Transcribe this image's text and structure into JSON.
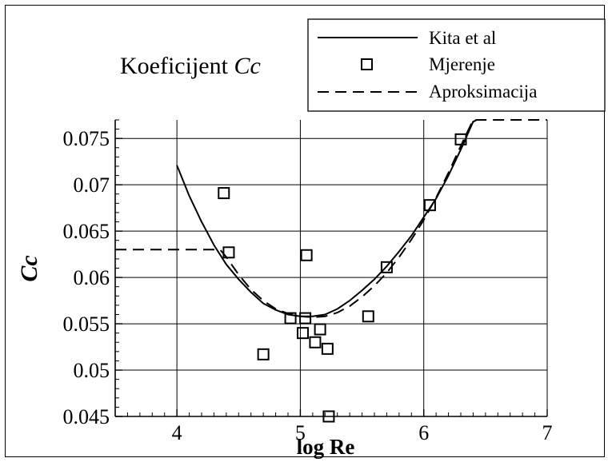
{
  "chart_data": {
    "type": "line",
    "title_text": "Koeficijent ",
    "title_italic": "Cc",
    "xlabel": "log Re",
    "ylabel": "Cc",
    "xlim": [
      3.5,
      7
    ],
    "ylim": [
      0.045,
      0.077
    ],
    "x_ticks": [
      4,
      5,
      6,
      7
    ],
    "x_tick_labels": [
      "4",
      "5",
      "6",
      "7"
    ],
    "y_ticks": [
      0.045,
      0.05,
      0.055,
      0.06,
      0.065,
      0.07,
      0.075
    ],
    "y_tick_labels": [
      "0.045",
      "0.05",
      "0.055",
      "0.06",
      "0.065",
      "0.07",
      "0.075"
    ],
    "grid": true,
    "legend_position": "top-right",
    "series": [
      {
        "name": "Kita et al",
        "style": "solid",
        "points": [
          [
            4.0,
            0.0721
          ],
          [
            4.1,
            0.0688
          ],
          [
            4.2,
            0.066
          ],
          [
            4.3,
            0.0635
          ],
          [
            4.4,
            0.0614
          ],
          [
            4.5,
            0.0598
          ],
          [
            4.6,
            0.0584
          ],
          [
            4.7,
            0.0572
          ],
          [
            4.8,
            0.0565
          ],
          [
            4.9,
            0.056
          ],
          [
            5.0,
            0.0558
          ],
          [
            5.1,
            0.0558
          ],
          [
            5.2,
            0.056
          ],
          [
            5.3,
            0.0566
          ],
          [
            5.4,
            0.0575
          ],
          [
            5.5,
            0.0586
          ],
          [
            5.6,
            0.0598
          ],
          [
            5.7,
            0.0612
          ],
          [
            5.8,
            0.0628
          ],
          [
            5.9,
            0.0645
          ],
          [
            6.0,
            0.0665
          ],
          [
            6.1,
            0.0685
          ],
          [
            6.2,
            0.071
          ],
          [
            6.3,
            0.0738
          ],
          [
            6.4,
            0.0768
          ],
          [
            6.43,
            0.077
          ]
        ]
      },
      {
        "name": "Mjerenje",
        "style": "markers",
        "points": [
          [
            4.38,
            0.0691
          ],
          [
            4.42,
            0.0627
          ],
          [
            4.7,
            0.0517
          ],
          [
            4.92,
            0.0556
          ],
          [
            5.02,
            0.054
          ],
          [
            5.04,
            0.0556
          ],
          [
            5.05,
            0.0624
          ],
          [
            5.12,
            0.053
          ],
          [
            5.16,
            0.0544
          ],
          [
            5.22,
            0.0523
          ],
          [
            5.23,
            0.045
          ],
          [
            5.55,
            0.0558
          ],
          [
            5.7,
            0.0611
          ],
          [
            6.05,
            0.0678
          ],
          [
            6.3,
            0.0749
          ]
        ]
      },
      {
        "name": "Aproksimacija",
        "style": "dashed",
        "points": [
          [
            3.5,
            0.063
          ],
          [
            4.35,
            0.063
          ],
          [
            4.4,
            0.0622
          ],
          [
            4.5,
            0.0603
          ],
          [
            4.6,
            0.0587
          ],
          [
            4.7,
            0.0575
          ],
          [
            4.8,
            0.0566
          ],
          [
            4.9,
            0.0561
          ],
          [
            5.0,
            0.0558
          ],
          [
            5.1,
            0.0557
          ],
          [
            5.2,
            0.0558
          ],
          [
            5.3,
            0.0562
          ],
          [
            5.4,
            0.0569
          ],
          [
            5.5,
            0.0579
          ],
          [
            5.6,
            0.0591
          ],
          [
            5.7,
            0.0605
          ],
          [
            5.8,
            0.0622
          ],
          [
            5.9,
            0.0641
          ],
          [
            6.0,
            0.0662
          ],
          [
            6.1,
            0.0686
          ],
          [
            6.2,
            0.0713
          ],
          [
            6.3,
            0.0742
          ],
          [
            6.4,
            0.077
          ],
          [
            7.0,
            0.077
          ]
        ]
      }
    ]
  }
}
